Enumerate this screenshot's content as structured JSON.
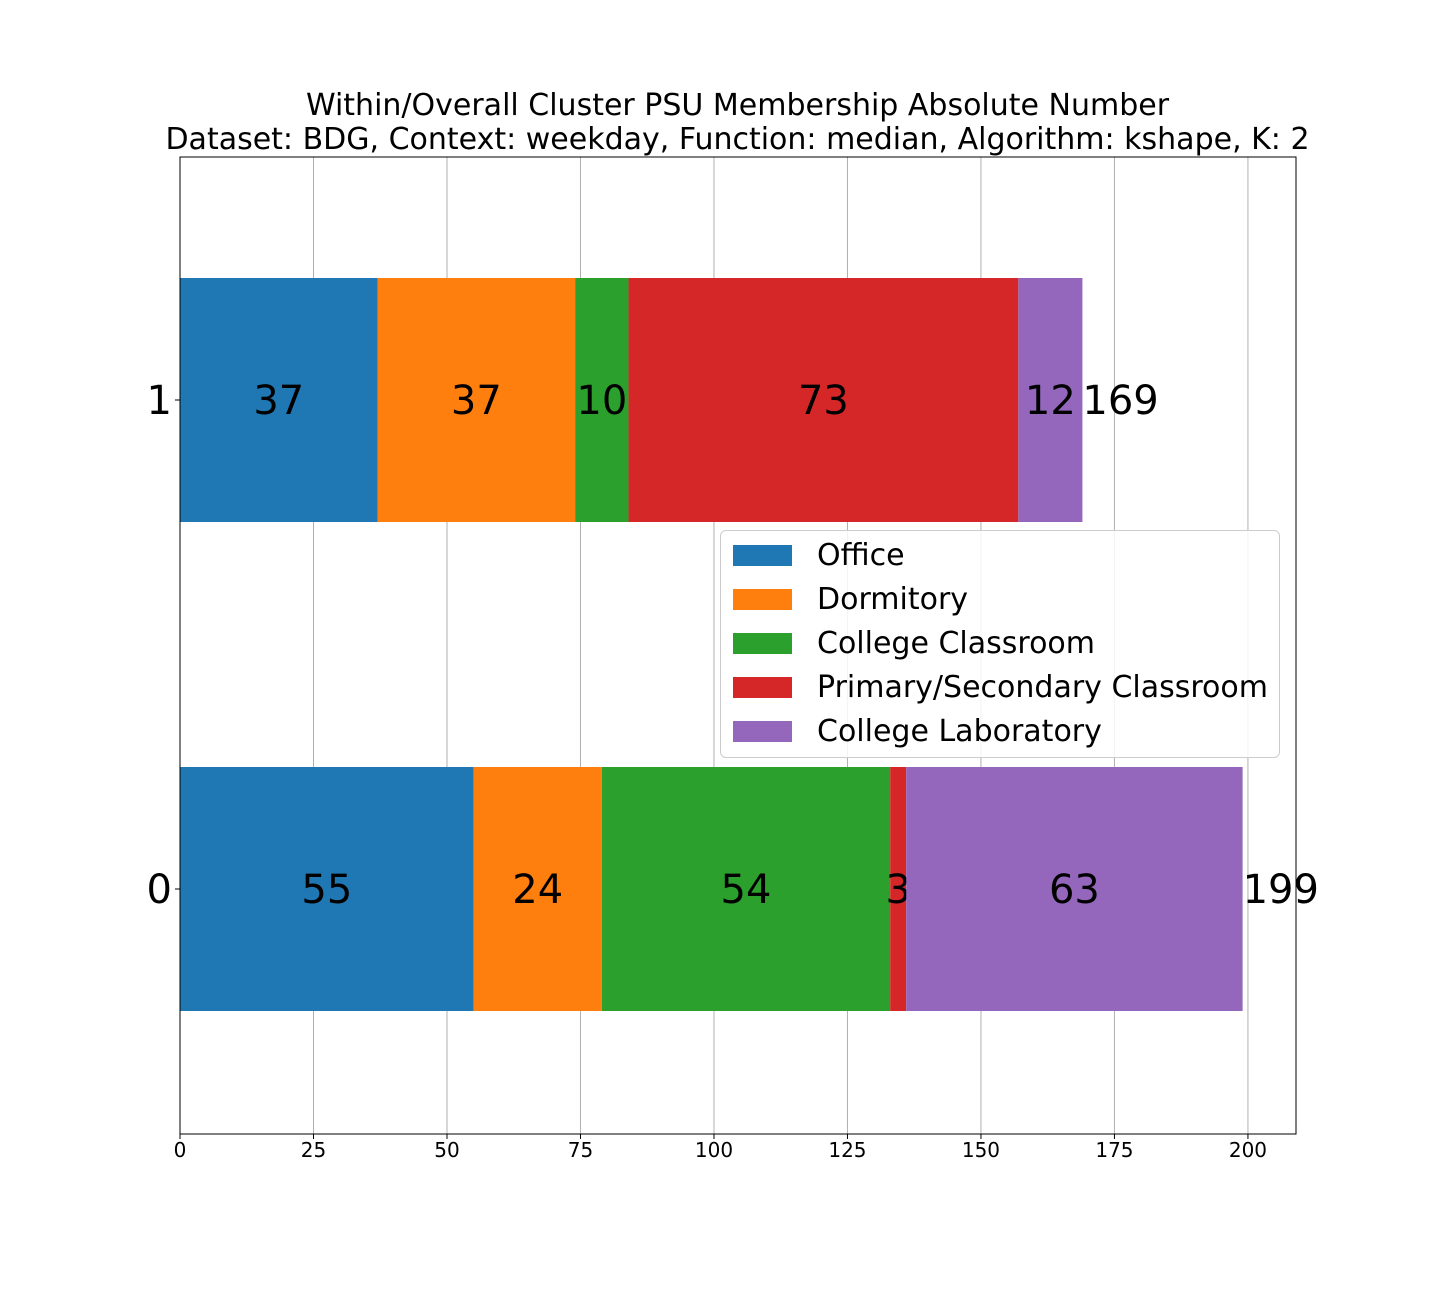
{
  "chart_data": {
    "type": "bar",
    "orientation": "horizontal",
    "stacked": true,
    "title": "Within/Overall Cluster PSU Membership Absolute Number",
    "subtitle": "Dataset: BDG, Context: weekday, Function: median, Algorithm: kshape, K: 2",
    "xlabel": "",
    "ylabel": "",
    "categories": [
      "1",
      "0"
    ],
    "series": [
      {
        "name": "Office",
        "color": "#1f77b4",
        "values": [
          37,
          55
        ]
      },
      {
        "name": "Dormitory",
        "color": "#ff7f0e",
        "values": [
          37,
          24
        ]
      },
      {
        "name": "College Classroom",
        "color": "#2ca02c",
        "values": [
          10,
          54
        ]
      },
      {
        "name": "Primary/Secondary Classroom",
        "color": "#d62728",
        "values": [
          73,
          3
        ]
      },
      {
        "name": "College Laboratory",
        "color": "#9467bd",
        "values": [
          12,
          63
        ]
      }
    ],
    "totals": [
      169,
      199
    ],
    "xlim": [
      0,
      209
    ],
    "xticks": [
      0,
      25,
      50,
      75,
      100,
      125,
      150,
      175,
      200
    ],
    "grid": "vertical",
    "legend_position": "center-right"
  }
}
